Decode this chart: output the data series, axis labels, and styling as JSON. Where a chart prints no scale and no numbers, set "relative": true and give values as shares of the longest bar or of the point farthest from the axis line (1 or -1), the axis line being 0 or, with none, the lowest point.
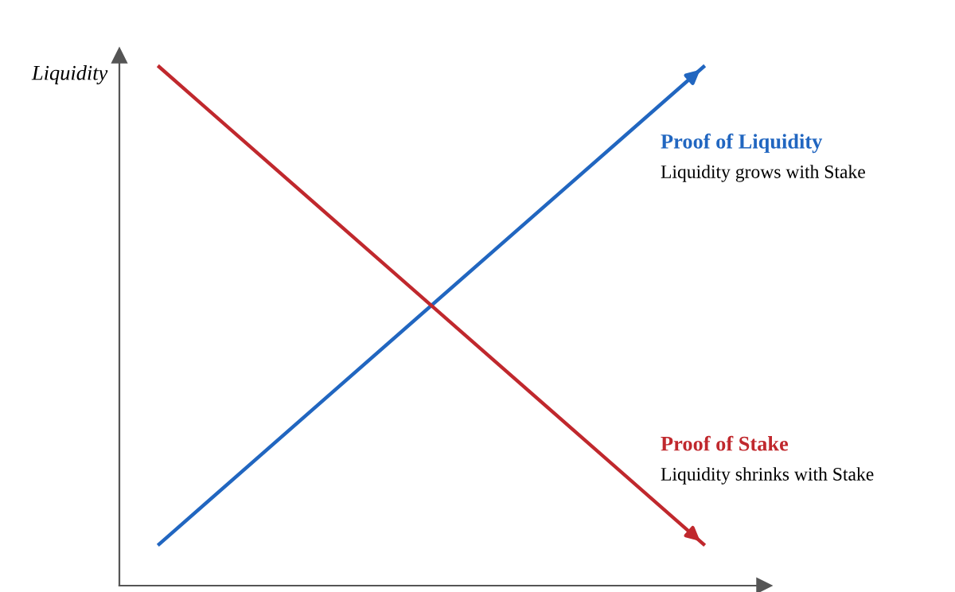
{
  "chart_data": {
    "type": "line",
    "relative": true,
    "ylabel": "Liquidity",
    "categories": [
      null,
      null
    ],
    "series": [
      {
        "name": "Proof of Liquidity",
        "color": "#2166c0",
        "values": [
          0.08,
          1
        ]
      },
      {
        "name": "Proof of Stake",
        "color": "#c0282d",
        "values": [
          1,
          0.08
        ]
      }
    ],
    "annotations": [
      "Liquidity grows with Stake",
      "Liquidity shrinks with Stake"
    ],
    "marker": "none",
    "line_style": "solid",
    "grid": false,
    "legend": false
  }
}
